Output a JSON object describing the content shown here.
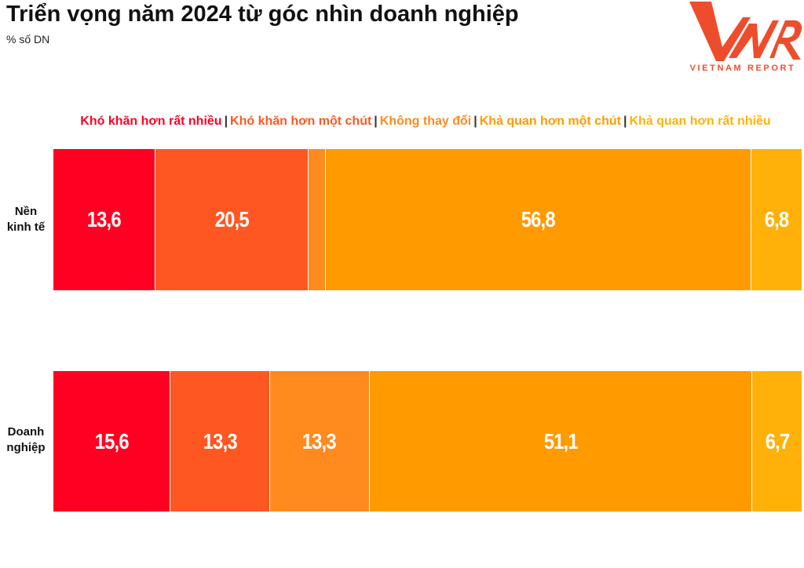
{
  "title": "Triển vọng năm 2024 từ góc nhìn doanh nghiệp",
  "subtitle": "% số DN",
  "logo": {
    "text": "VNR",
    "tagline": "VIETNAM REPORT",
    "color": "#ee4d2d"
  },
  "chart_data": {
    "type": "bar",
    "orientation": "horizontal-stacked",
    "title": "Triển vọng năm 2024 từ góc nhìn doanh nghiệp",
    "ylabel": "% số DN",
    "categories": [
      "Nền kinh tế",
      "Doanh nghiệp"
    ],
    "legend_position": "top",
    "series": [
      {
        "name": "Khó khăn hơn rất nhiều",
        "color": "#ff0022",
        "values": [
          13.6,
          15.6
        ],
        "labels": [
          "13,6",
          "15,6"
        ]
      },
      {
        "name": "Khó khăn hơn một chút",
        "color": "#ff5722",
        "values": [
          20.5,
          13.3
        ],
        "labels": [
          "20,5",
          "13,3"
        ]
      },
      {
        "name": "Không thay đổi",
        "color": "#ff8a1e",
        "values": [
          2.3,
          13.3
        ],
        "labels": [
          "",
          "13,3"
        ]
      },
      {
        "name": "Khả quan hơn một chút",
        "color": "#ff9a00",
        "values": [
          56.8,
          51.1
        ],
        "labels": [
          "56,8",
          "51,1"
        ]
      },
      {
        "name": "Khả quan hơn rất nhiều",
        "color": "#ffb10a",
        "values": [
          6.8,
          6.7
        ],
        "labels": [
          "6,8",
          "6,7"
        ]
      }
    ]
  }
}
